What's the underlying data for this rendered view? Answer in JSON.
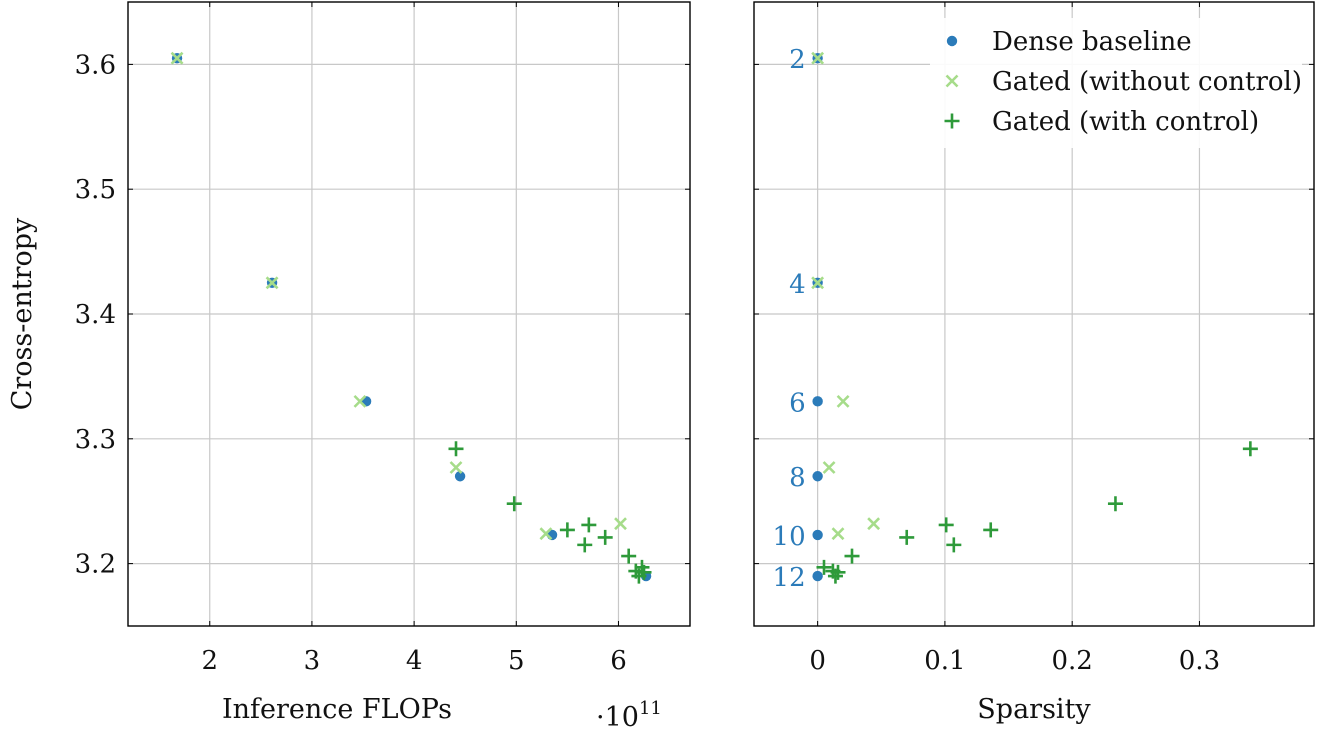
{
  "chart_data": {
    "type": "scatter",
    "colors": {
      "dense": "#2b7bb9",
      "gated_without": "#a6dc8a",
      "gated_with": "#2e9a3a",
      "grid": "#c8c8c8",
      "frame": "#000000"
    },
    "ylabel": "Cross-entropy",
    "y_ticks": [
      3.2,
      3.3,
      3.4,
      3.5,
      3.6
    ],
    "y_tick_labels": [
      "3.2",
      "3.3",
      "3.4",
      "3.5",
      "3.6"
    ],
    "ylim": [
      3.15,
      3.65
    ],
    "legend": {
      "location": "top-right",
      "entries": [
        {
          "series": "dense",
          "label": "Dense baseline"
        },
        {
          "series": "gated_without",
          "label": "Gated (without control)"
        },
        {
          "series": "gated_with",
          "label": "Gated (with control)"
        }
      ]
    },
    "panels": [
      {
        "id": "flops",
        "xlabel": "Inference FLOPs",
        "x_scale_label": "·10",
        "x_scale_exponent": "11",
        "xlim": [
          1.2,
          6.7
        ],
        "x_ticks": [
          2,
          3,
          4,
          5,
          6
        ],
        "x_tick_labels": [
          "2",
          "3",
          "4",
          "5",
          "6"
        ],
        "series": {
          "dense": [
            [
              1.68,
              3.605
            ],
            [
              2.61,
              3.425
            ],
            [
              3.53,
              3.33
            ],
            [
              4.45,
              3.27
            ],
            [
              5.35,
              3.223
            ],
            [
              6.27,
              3.19
            ]
          ],
          "gated_without": [
            [
              1.68,
              3.605
            ],
            [
              2.61,
              3.425
            ],
            [
              3.47,
              3.33
            ],
            [
              4.41,
              3.277
            ],
            [
              5.29,
              3.224
            ],
            [
              6.02,
              3.232
            ]
          ],
          "gated_with": [
            [
              4.41,
              3.292
            ],
            [
              4.98,
              3.248
            ],
            [
              5.5,
              3.227
            ],
            [
              5.71,
              3.231
            ],
            [
              5.67,
              3.215
            ],
            [
              5.87,
              3.221
            ],
            [
              6.1,
              3.206
            ],
            [
              6.17,
              3.194
            ],
            [
              6.2,
              3.19
            ],
            [
              6.23,
              3.197
            ],
            [
              6.25,
              3.193
            ]
          ]
        }
      },
      {
        "id": "sparsity",
        "xlabel": "Sparsity",
        "xlim": [
          -0.05,
          0.39
        ],
        "x_ticks": [
          0,
          0.1,
          0.2,
          0.3
        ],
        "x_tick_labels": [
          "0",
          "0.1",
          "0.2",
          "0.3"
        ],
        "series": {
          "dense": [
            [
              0,
              3.605
            ],
            [
              0,
              3.425
            ],
            [
              0,
              3.33
            ],
            [
              0,
              3.27
            ],
            [
              0,
              3.223
            ],
            [
              0,
              3.19
            ]
          ],
          "gated_without": [
            [
              0,
              3.605
            ],
            [
              0,
              3.425
            ],
            [
              0.02,
              3.33
            ],
            [
              0.009,
              3.277
            ],
            [
              0.016,
              3.224
            ],
            [
              0.044,
              3.232
            ]
          ],
          "gated_with": [
            [
              0.34,
              3.292
            ],
            [
              0.234,
              3.248
            ],
            [
              0.136,
              3.227
            ],
            [
              0.101,
              3.231
            ],
            [
              0.107,
              3.215
            ],
            [
              0.07,
              3.221
            ],
            [
              0.027,
              3.206
            ],
            [
              0.012,
              3.194
            ],
            [
              0.014,
              3.19
            ],
            [
              0.005,
              3.197
            ],
            [
              0.016,
              3.193
            ]
          ]
        },
        "point_labels": [
          {
            "text": "2",
            "y": 3.605
          },
          {
            "text": "4",
            "y": 3.425
          },
          {
            "text": "6",
            "y": 3.33
          },
          {
            "text": "8",
            "y": 3.27
          },
          {
            "text": "10",
            "y": 3.223
          },
          {
            "text": "12",
            "y": 3.19
          }
        ]
      }
    ]
  }
}
